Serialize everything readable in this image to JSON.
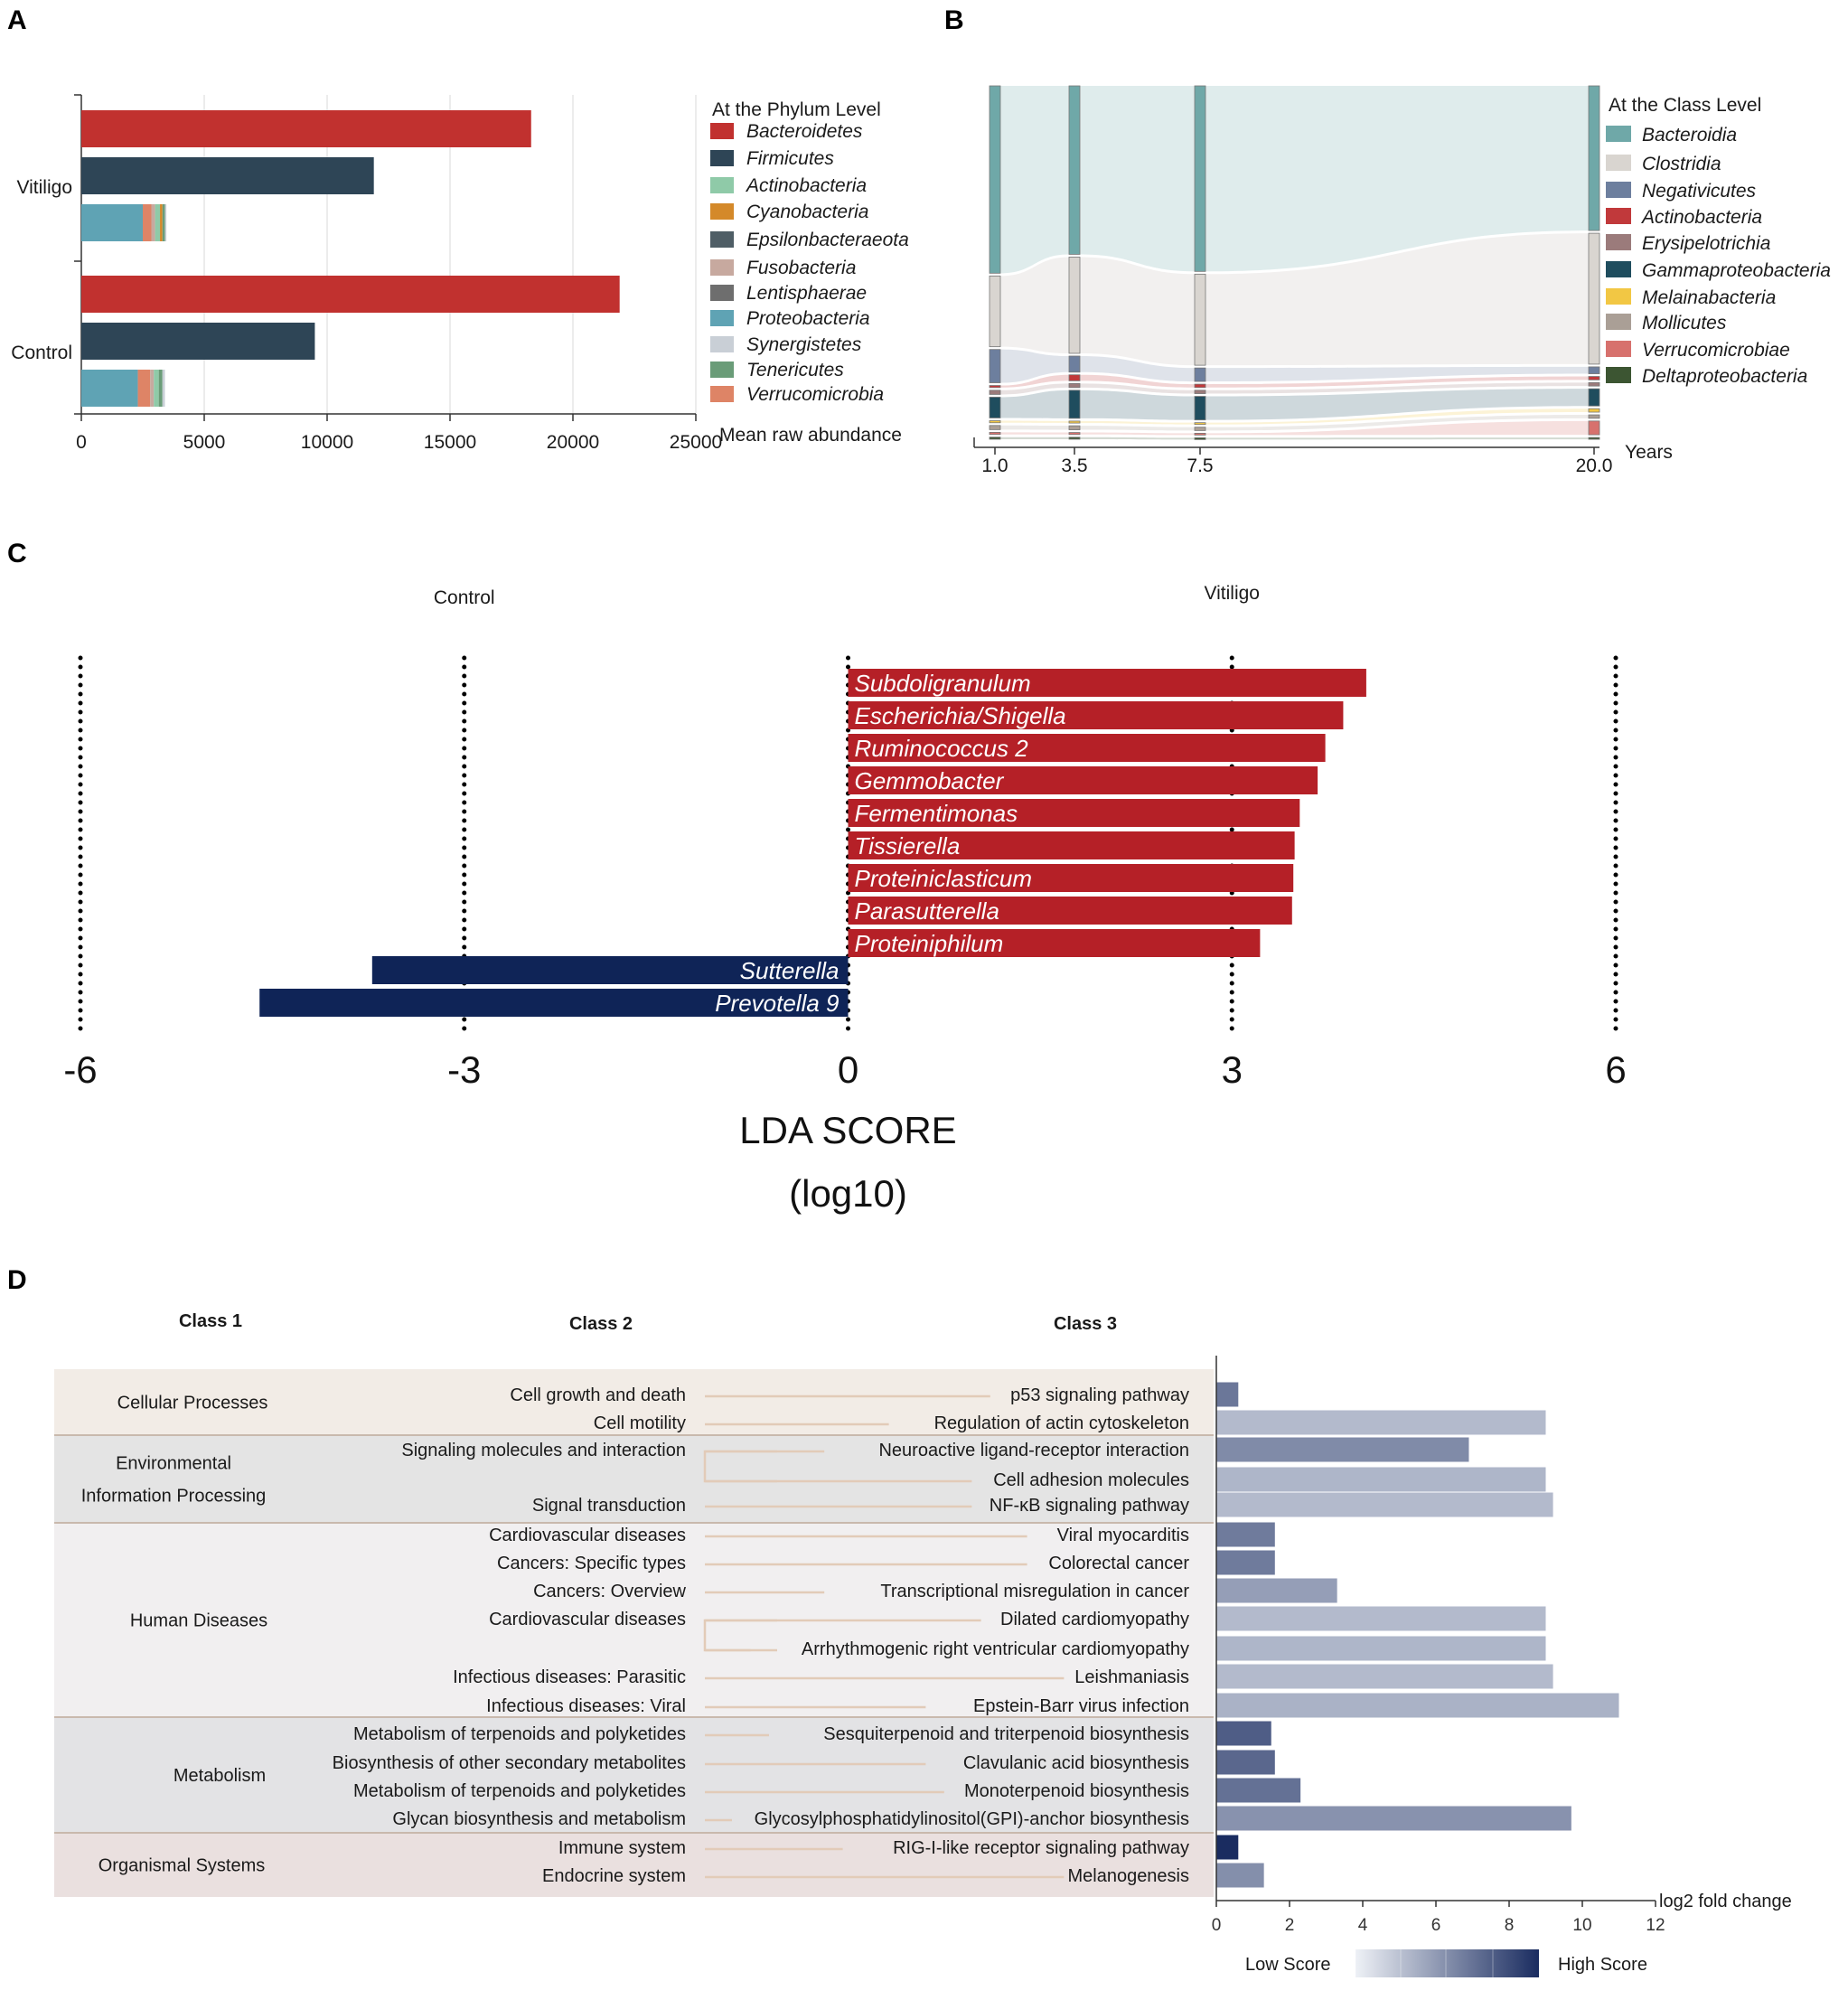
{
  "panels": {
    "A": "A",
    "B": "B",
    "C": "C",
    "D": "D"
  },
  "chart_data": [
    {
      "id": "A",
      "type": "bar",
      "orientation": "horizontal",
      "stacked": true,
      "categories": [
        "Vitiligo",
        "Control"
      ],
      "xlabel": "Mean raw abundance",
      "xlim": [
        0,
        25000
      ],
      "xticks": [
        "0",
        "5000",
        "10000",
        "15000",
        "20000",
        "25000"
      ],
      "legend_title": "At the Phylum Level",
      "colors": {
        "Bacteroidetes": "#c1312f",
        "Firmicutes": "#2e4556",
        "Actinobacteria": "#8fcaa8",
        "Cyanobacteria": "#d4892a",
        "Epsilonbacteraeota": "#4f5e66",
        "Fusobacteria": "#c7a99f",
        "Lentisphaerae": "#6e6e6e",
        "Proteobacteria": "#5fa3b4",
        "Synergistetes": "#c9cfd6",
        "Tenericutes": "#6a9c78",
        "Verrucomicrobia": "#de8466"
      },
      "legend": [
        "Bacteroidetes",
        "Firmicutes",
        "Actinobacteria",
        "Cyanobacteria",
        "Epsilonbacteraeota",
        "Fusobacteria",
        "Lentisphaerae",
        "Proteobacteria",
        "Synergistetes",
        "Tenericutes",
        "Verrucomicrobia"
      ],
      "groups": [
        {
          "name": "Vitiligo",
          "bars": [
            [
              {
                "series": "Bacteroidetes",
                "value": 18300
              }
            ],
            [
              {
                "series": "Firmicutes",
                "value": 11900
              }
            ],
            [
              {
                "series": "Proteobacteria",
                "value": 2500
              },
              {
                "series": "Verrucomicrobia",
                "value": 350
              },
              {
                "series": "Fusobacteria",
                "value": 150
              },
              {
                "series": "Actinobacteria",
                "value": 200
              },
              {
                "series": "Cyanobacteria",
                "value": 100
              },
              {
                "series": "Tenericutes",
                "value": 100
              },
              {
                "series": "Synergistetes",
                "value": 60
              }
            ]
          ]
        },
        {
          "name": "Control",
          "bars": [
            [
              {
                "series": "Bacteroidetes",
                "value": 21900
              }
            ],
            [
              {
                "series": "Firmicutes",
                "value": 9500
              }
            ],
            [
              {
                "series": "Proteobacteria",
                "value": 2300
              },
              {
                "series": "Verrucomicrobia",
                "value": 500
              },
              {
                "series": "Fusobacteria",
                "value": 150
              },
              {
                "series": "Actinobacteria",
                "value": 200
              },
              {
                "series": "Tenericutes",
                "value": 150
              },
              {
                "series": "Synergistetes",
                "value": 100
              }
            ]
          ]
        }
      ]
    },
    {
      "id": "B",
      "type": "sankey",
      "xlabel": "Years",
      "x": [
        1.0,
        3.5,
        7.5,
        20.0
      ],
      "xticks": [
        "1.0",
        "3.5",
        "7.5",
        "20.0"
      ],
      "legend_title": "At the Class Level",
      "legend": [
        "Bacteroidia",
        "Clostridia",
        "Negativicutes",
        "Actinobacteria",
        "Erysipelotrichia",
        "Gammaproteobacteria",
        "Melainabacteria",
        "Mollicutes",
        "Verrucomicrobiae",
        "Deltaproteobacteria"
      ],
      "colors": {
        "Bacteroidia": "#6fa8a8",
        "Clostridia": "#d9d5d0",
        "Negativicutes": "#6d7f9e",
        "Actinobacteria": "#c1393b",
        "Erysipelotrichia": "#9b7b7b",
        "Gammaproteobacteria": "#1f4d5e",
        "Melainabacteria": "#f2c744",
        "Mollicutes": "#aa9f96",
        "Verrucomicrobiae": "#d7716d",
        "Deltaproteobacteria": "#3c5532"
      },
      "proportions": [
        {
          "time": "1.0",
          "Bacteroidia": 0.45,
          "Clostridia": 0.17,
          "Negativicutes": 0.08,
          "Actinobacteria": 0.005,
          "Erysipelotrichia": 0.01,
          "Gammaproteobacteria": 0.05,
          "Melainabacteria": 0.005,
          "Mollicutes": 0.01,
          "Verrucomicrobiae": 0.005,
          "Deltaproteobacteria": 0.005
        },
        {
          "time": "3.5",
          "Bacteroidia": 0.42,
          "Clostridia": 0.24,
          "Negativicutes": 0.04,
          "Actinobacteria": 0.015,
          "Erysipelotrichia": 0.01,
          "Gammaproteobacteria": 0.07,
          "Melainabacteria": 0.005,
          "Mollicutes": 0.01,
          "Verrucomicrobiae": 0.005,
          "Deltaproteobacteria": 0.005
        },
        {
          "time": "7.5",
          "Bacteroidia": 0.55,
          "Clostridia": 0.27,
          "Negativicutes": 0.04,
          "Actinobacteria": 0.01,
          "Erysipelotrichia": 0.01,
          "Gammaproteobacteria": 0.07,
          "Melainabacteria": 0.005,
          "Mollicutes": 0.01,
          "Verrucomicrobiae": 0.005,
          "Deltaproteobacteria": 0.005
        },
        {
          "time": "20.0",
          "Bacteroidia": 0.42,
          "Clostridia": 0.38,
          "Negativicutes": 0.02,
          "Actinobacteria": 0.01,
          "Erysipelotrichia": 0.01,
          "Gammaproteobacteria": 0.05,
          "Melainabacteria": 0.01,
          "Mollicutes": 0.01,
          "Verrucomicrobiae": 0.04,
          "Deltaproteobacteria": 0.005
        }
      ]
    },
    {
      "id": "C",
      "type": "bar",
      "orientation": "horizontal",
      "title_left": "Control",
      "title_right": "Vitiligo",
      "xlabel": "LDA SCORE",
      "xlabel2": "(log10)",
      "xlim": [
        -6,
        6
      ],
      "xticks": [
        "-6",
        "-3",
        "0",
        "3",
        "6"
      ],
      "colors": {
        "Vitiligo": "#b52027",
        "Control": "#0f2457"
      },
      "items": [
        {
          "name": "Subdoligranulum",
          "value": 4.05,
          "group": "Vitiligo"
        },
        {
          "name": "Escherichia/Shigella",
          "value": 3.87,
          "group": "Vitiligo"
        },
        {
          "name": "Ruminococcus 2",
          "value": 3.73,
          "group": "Vitiligo"
        },
        {
          "name": "Gemmobacter",
          "value": 3.67,
          "group": "Vitiligo"
        },
        {
          "name": "Fermentimonas",
          "value": 3.53,
          "group": "Vitiligo"
        },
        {
          "name": "Tissierella",
          "value": 3.49,
          "group": "Vitiligo"
        },
        {
          "name": "Proteiniclasticum",
          "value": 3.48,
          "group": "Vitiligo"
        },
        {
          "name": "Parasutterella",
          "value": 3.47,
          "group": "Vitiligo"
        },
        {
          "name": "Proteiniphilum",
          "value": 3.22,
          "group": "Vitiligo"
        },
        {
          "name": "Sutterella",
          "value": -3.72,
          "group": "Control"
        },
        {
          "name": "Prevotella 9",
          "value": -4.6,
          "group": "Control"
        }
      ]
    },
    {
      "id": "D",
      "type": "bar",
      "orientation": "horizontal",
      "headers": {
        "class1": "Class 1",
        "class2": "Class 2",
        "class3": "Class 3"
      },
      "xlabel": "log2 fold change",
      "xlim": [
        0,
        12
      ],
      "xticks": [
        "0",
        "2",
        "4",
        "6",
        "8",
        "10",
        "12"
      ],
      "colorbar": {
        "low": "Low Score",
        "high": "High Score",
        "low_color": "#eef1f6",
        "high_color": "#1a2c60"
      },
      "class1": [
        {
          "label": "Cellular Processes",
          "rows": 2,
          "color": "#f2ece6"
        },
        {
          "label": "Environmental\nInformation Processing",
          "rows": 3,
          "color": "#e4e4e4"
        },
        {
          "label": "Human Diseases",
          "rows": 7,
          "color": "#f1eff0"
        },
        {
          "label": "Metabolism",
          "rows": 4,
          "color": "#e3e3e5"
        },
        {
          "label": "Organismal Systems",
          "rows": 2,
          "color": "#eae0df"
        }
      ],
      "rows": [
        {
          "class2": "Cell growth and death",
          "class3": "p53 signaling pathway",
          "value": 0.6,
          "score": 0.62
        },
        {
          "class2": "Cell motility",
          "class3": "Regulation of actin cytoskeleton",
          "value": 9.0,
          "score": 0.28
        },
        {
          "class2": "Signaling molecules and interaction",
          "class3": "Neuroactive ligand-receptor interaction",
          "value": 6.9,
          "score": 0.52
        },
        {
          "class2": "",
          "class3": "Cell adhesion molecules",
          "value": 9.0,
          "score": 0.3
        },
        {
          "class2": "Signal transduction",
          "class3": "NF-κB signaling pathway",
          "value": 9.2,
          "score": 0.28
        },
        {
          "class2": "Cardiovascular diseases",
          "class3": "Viral myocarditis",
          "value": 1.6,
          "score": 0.6
        },
        {
          "class2": "Cancers: Specific types",
          "class3": "Colorectal cancer",
          "value": 1.6,
          "score": 0.6
        },
        {
          "class2": "Cancers: Overview",
          "class3": "Transcriptional misregulation in cancer",
          "value": 3.3,
          "score": 0.42
        },
        {
          "class2": "Cardiovascular diseases",
          "class3": "Dilated cardiomyopathy",
          "value": 9.0,
          "score": 0.28
        },
        {
          "class2": "",
          "class3": "Arrhythmogenic right ventricular cardiomyopathy",
          "value": 9.0,
          "score": 0.3
        },
        {
          "class2": "Infectious diseases: Parasitic",
          "class3": "Leishmaniasis",
          "value": 9.2,
          "score": 0.28
        },
        {
          "class2": "Infectious diseases: Viral",
          "class3": "Epstein-Barr virus infection",
          "value": 11.0,
          "score": 0.32
        },
        {
          "class2": "Metabolism of terpenoids and polyketides",
          "class3": "Sesquiterpenoid and triterpenoid biosynthesis",
          "value": 1.5,
          "score": 0.75
        },
        {
          "class2": "Biosynthesis of other secondary metabolites",
          "class3": "Clavulanic acid biosynthesis",
          "value": 1.6,
          "score": 0.7
        },
        {
          "class2": "Metabolism of terpenoids and polyketides",
          "class3": "Monoterpenoid biosynthesis",
          "value": 2.3,
          "score": 0.65
        },
        {
          "class2": "Glycan biosynthesis and metabolism",
          "class3": "Glycosylphosphatidylinositol(GPI)-anchor biosynthesis",
          "value": 9.7,
          "score": 0.48
        },
        {
          "class2": "Immune system",
          "class3": "RIG-I-like receptor signaling pathway",
          "value": 0.6,
          "score": 1.0
        },
        {
          "class2": "Endocrine system",
          "class3": "Melanogenesis",
          "value": 1.3,
          "score": 0.5
        }
      ]
    }
  ]
}
